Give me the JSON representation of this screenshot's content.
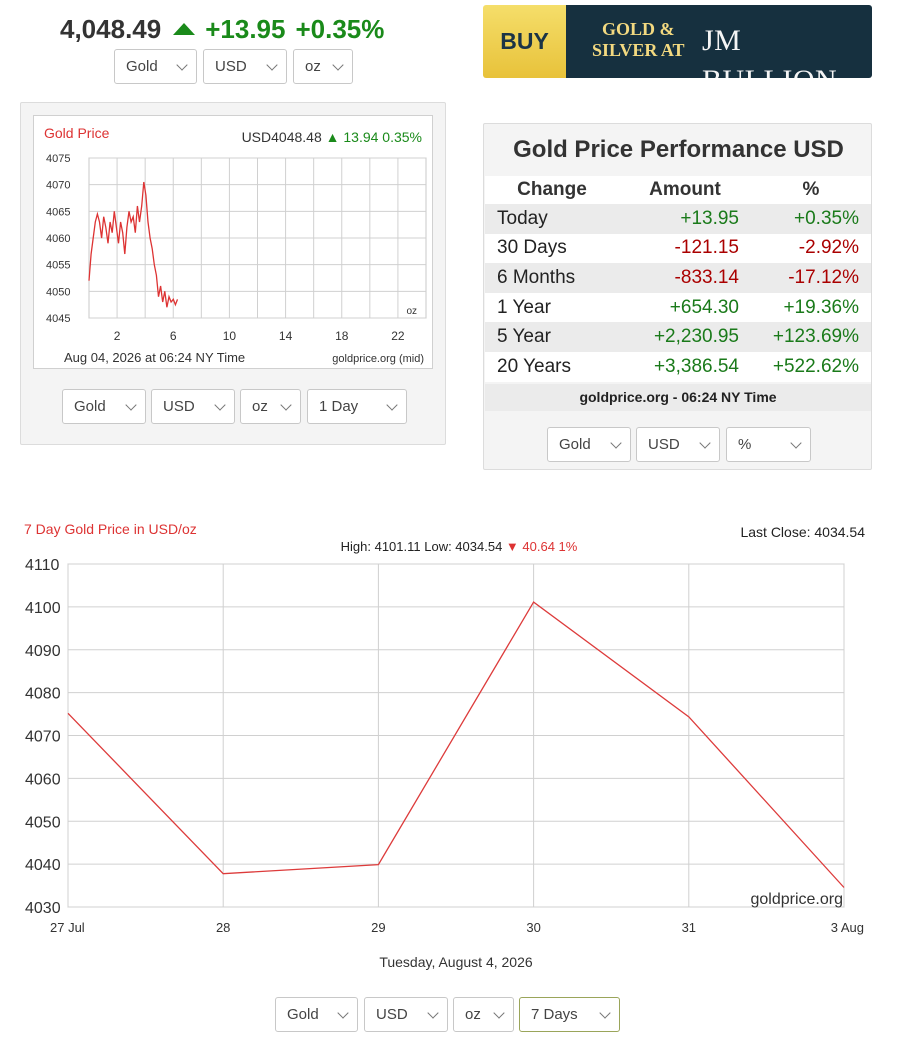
{
  "header": {
    "price": "4,048.49",
    "change": "+13.95",
    "change_pct": "+0.35%",
    "selects": {
      "metal": "Gold",
      "currency": "USD",
      "unit": "oz"
    }
  },
  "banner": {
    "buy": "BUY",
    "gs_line1": "GOLD &",
    "gs_line2": "SILVER AT",
    "brand": "JM BULLION"
  },
  "small_chart_panel": {
    "selects": {
      "metal": "Gold",
      "currency": "USD",
      "unit": "oz",
      "range": "1 Day"
    }
  },
  "performance": {
    "title": "Gold Price Performance USD",
    "columns": [
      "Change",
      "Amount",
      "%"
    ],
    "rows": [
      {
        "label": "Today",
        "amount": "+13.95",
        "pct": "+0.35%",
        "dir": "pos"
      },
      {
        "label": "30 Days",
        "amount": "-121.15",
        "pct": "-2.92%",
        "dir": "neg"
      },
      {
        "label": "6 Months",
        "amount": "-833.14",
        "pct": "-17.12%",
        "dir": "neg"
      },
      {
        "label": "1 Year",
        "amount": "+654.30",
        "pct": "+19.36%",
        "dir": "pos"
      },
      {
        "label": "5 Year",
        "amount": "+2,230.95",
        "pct": "+123.69%",
        "dir": "pos"
      },
      {
        "label": "20 Years",
        "amount": "+3,386.54",
        "pct": "+522.62%",
        "dir": "pos"
      }
    ],
    "source": "goldprice.org - 06:24 NY Time",
    "selects": {
      "metal": "Gold",
      "currency": "USD",
      "unit": "%"
    }
  },
  "big_chart_panel": {
    "selects": {
      "metal": "Gold",
      "currency": "USD",
      "unit": "oz",
      "range": "7 Days"
    }
  },
  "colors": {
    "line": "#dd3b3b",
    "grid": "#d0d0d0",
    "green": "#1a8a1a",
    "red": "#d33"
  },
  "chart_data": [
    {
      "type": "line",
      "title": "Gold Price",
      "header_right": "USD4048.48",
      "header_change": "13.94 0.35%",
      "unit_label": "oz",
      "footer_left": "Aug 04, 2026 at 06:24 NY Time",
      "footer_right": "goldprice.org (mid)",
      "xlim": [
        0,
        24
      ],
      "ylim": [
        4045,
        4075
      ],
      "x_ticks": [
        2,
        6,
        10,
        14,
        18,
        22
      ],
      "y_ticks": [
        4045,
        4050,
        4055,
        4060,
        4065,
        4070,
        4075
      ],
      "grid": true,
      "series": [
        {
          "x": [
            0,
            0.15,
            0.3,
            0.45,
            0.6,
            0.75,
            0.9,
            1.05,
            1.2,
            1.35,
            1.5,
            1.65,
            1.8,
            1.95,
            2.1,
            2.25,
            2.4,
            2.55,
            2.7,
            2.85,
            3.0,
            3.15,
            3.3,
            3.45,
            3.6,
            3.75,
            3.9,
            4.05,
            4.2,
            4.35,
            4.5,
            4.65,
            4.8,
            4.95,
            5.1,
            5.25,
            5.4,
            5.55,
            5.7,
            5.85,
            6.0,
            6.15,
            6.3
          ],
          "values": [
            4052,
            4057,
            4060,
            4063,
            4064.5,
            4063,
            4060,
            4064,
            4062,
            4059,
            4063,
            4061,
            4065,
            4062,
            4059,
            4063,
            4061,
            4057,
            4062,
            4065,
            4063,
            4064,
            4061,
            4066,
            4063,
            4066,
            4070.5,
            4068,
            4063,
            4060,
            4058,
            4055,
            4053,
            4049,
            4051,
            4048,
            4050,
            4047,
            4049,
            4048,
            4048.5,
            4047.5,
            4048.48
          ]
        }
      ]
    },
    {
      "type": "line",
      "title": "7 Day Gold Price in USD/oz",
      "last_close": "Last Close: 4034.54",
      "stats_text": "High: 4101.11 Low: 4034.54",
      "stats_change": "40.64 1%",
      "watermark": "goldprice.org",
      "xlabel": "Tuesday, August 4, 2026",
      "categories": [
        "27 Jul",
        "28",
        "29",
        "30",
        "31",
        "3 Aug"
      ],
      "ylim": [
        4030,
        4110
      ],
      "y_ticks": [
        4030,
        4040,
        4050,
        4060,
        4070,
        4080,
        4090,
        4100,
        4110
      ],
      "grid": true,
      "series": [
        {
          "values": [
            4075.18,
            4037.76,
            4039.88,
            4101.11,
            4074.37,
            4034.54
          ]
        }
      ]
    }
  ]
}
